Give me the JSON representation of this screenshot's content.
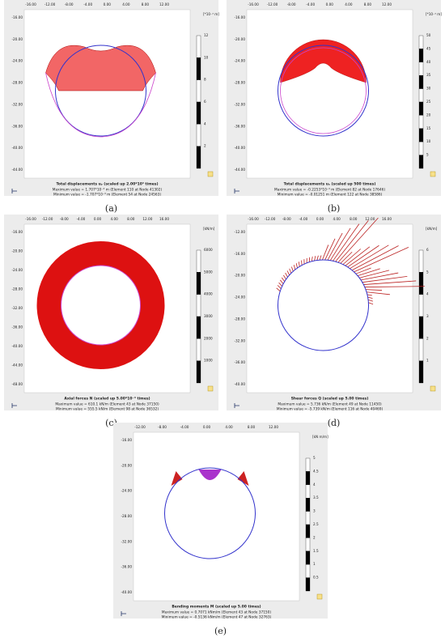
{
  "panels": [
    {
      "label": "(a)",
      "title": "Total displacements uᵧ (scaled up 2.00*10³ times)",
      "max": "Maximum value = 1.707*10⁻³ m (Element 110 at Node 41302)",
      "min": "Minimum value = -1.707*10⁻³ m (Element 54 at Node 24563)",
      "unit": "[*10⁻³ m]",
      "xticks": [
        "-16.00",
        "-12.00",
        "-8.00",
        "-4.00",
        "0.00",
        "4.00",
        "8.00",
        "12.00"
      ],
      "yticks": [
        "-16.00",
        "-20.00",
        "-24.00",
        "-28.00",
        "-32.00",
        "-36.00",
        "-40.00",
        "-44.00"
      ],
      "colorbar": [
        "12",
        "10",
        "8",
        "6",
        "4",
        "2"
      ]
    },
    {
      "label": "(b)",
      "title": "Total displacements uᵧ (scaled up 500 times)",
      "max": "Maximum value = -0.2253*10⁻³ m (Element 82 at Node 17646)",
      "min": "Minimum value = -0.01251 m (Element 122 at Node 38586)",
      "unit": "[*10⁻³ m]",
      "xticks": [
        "-16.00",
        "-12.00",
        "-8.00",
        "-4.00",
        "0.00",
        "4.00",
        "8.00",
        "12.00"
      ],
      "yticks": [
        "-16.00",
        "-20.00",
        "-24.00",
        "-28.00",
        "-32.00",
        "-36.00",
        "-40.00",
        "-44.00"
      ],
      "colorbar": [
        "50",
        "45",
        "40",
        "35",
        "30",
        "25",
        "20",
        "15",
        "10",
        "5"
      ]
    },
    {
      "label": "(c)",
      "title": "Axial forces N (scaled up 5.00*10⁻³ times)",
      "max": "Maximum value = 610.1 kN/m (Element 43 at Node 37150)",
      "min": "Minimum value = 555.5 kN/m (Element 98 at Node 36532)",
      "unit": "[kN/m]",
      "xticks": [
        "-16.00",
        "-12.00",
        "-8.00",
        "-4.00",
        "0.00",
        "4.00",
        "8.00",
        "12.00",
        "16.00"
      ],
      "yticks": [
        "-16.00",
        "-20.00",
        "-24.00",
        "-28.00",
        "-32.00",
        "-36.00",
        "-40.00",
        "-44.00",
        "-48.00"
      ],
      "colorbar": [
        "6000",
        "5000",
        "4000",
        "3000",
        "2000",
        "1000"
      ]
    },
    {
      "label": "(d)",
      "title": "Shear forces Q (scaled up 5.00 times)",
      "max": "Maximum value = 5.736 kN/m (Element 49 at Node 11450)",
      "min": "Minimum value = -5.739 kN/m (Element 116 at Node 40469)",
      "unit": "[kN/m]",
      "xticks": [
        "-16.00",
        "-12.00",
        "-8.00",
        "-4.00",
        "0.00",
        "4.00",
        "8.00",
        "12.00",
        "16.00"
      ],
      "yticks": [
        "-12.00",
        "-16.00",
        "-20.00",
        "-24.00",
        "-28.00",
        "-32.00",
        "-36.00",
        "-40.00"
      ],
      "colorbar": [
        "6",
        "5",
        "4",
        "3",
        "2",
        "1"
      ]
    },
    {
      "label": "(e)",
      "title": "Bending moments M (scaled up 5.00 times)",
      "max": "Maximum value = 0.7071 kNm/m (Element 43 at Node 37150)",
      "min": "Minimum value = -0.5136 kNm/m (Element 47 at Node 32763)",
      "unit": "[kN m/m]",
      "xticks": [
        "-12.00",
        "-8.00",
        "-4.00",
        "0.00",
        "4.00",
        "8.00",
        "12.00"
      ],
      "yticks": [
        "-16.00",
        "-20.00",
        "-24.00",
        "-28.00",
        "-32.00",
        "-36.00",
        "-40.00"
      ],
      "colorbar": [
        "5",
        "4.5",
        "4",
        "3.5",
        "3",
        "2.5",
        "2",
        "1.5",
        "1",
        "0.5"
      ]
    }
  ]
}
